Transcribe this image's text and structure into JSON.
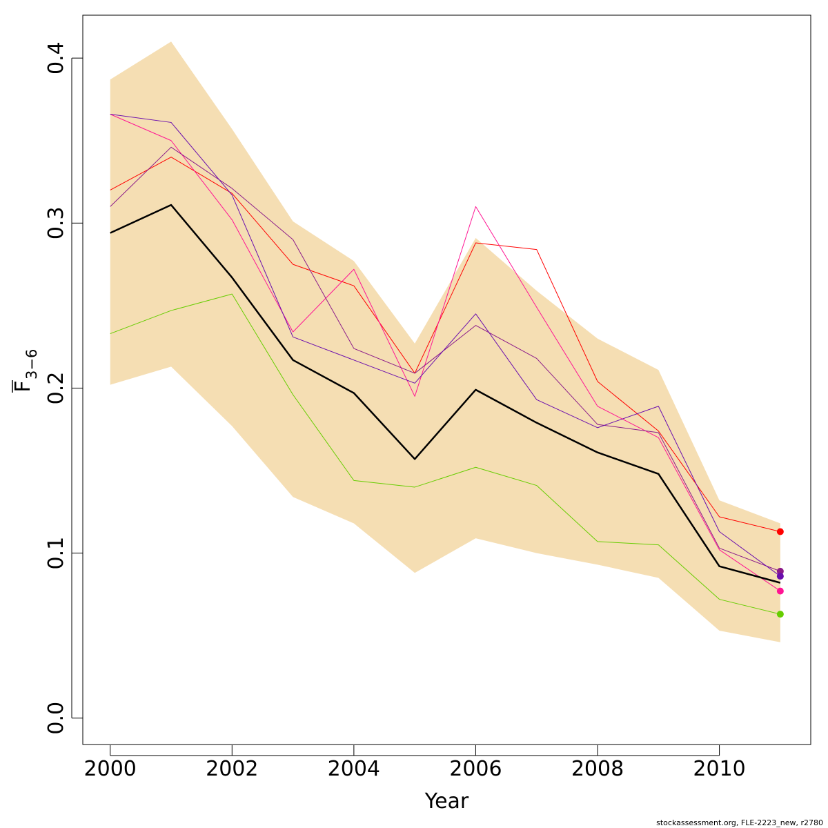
{
  "chart_data": {
    "type": "line",
    "title": "",
    "xlabel": "Year",
    "ylabel": "F",
    "ylabel_subscript": "3−6",
    "xlim": [
      1999.55,
      2011.5
    ],
    "ylim": [
      -0.016,
      0.426
    ],
    "x_ticks": [
      2000,
      2002,
      2004,
      2006,
      2008,
      2010
    ],
    "y_ticks": [
      0.0,
      0.1,
      0.2,
      0.3,
      0.4
    ],
    "x_tick_labels": [
      "2000",
      "2002",
      "2004",
      "2006",
      "2008",
      "2010"
    ],
    "y_tick_labels": [
      "0.0",
      "0.1",
      "0.2",
      "0.3",
      "0.4"
    ],
    "grid": false,
    "x": [
      2000,
      2001,
      2002,
      2003,
      2004,
      2005,
      2006,
      2007,
      2008,
      2009,
      2010,
      2011
    ],
    "band": {
      "color": "#f5deb3",
      "upper": [
        0.387,
        0.41,
        0.357,
        0.301,
        0.277,
        0.227,
        0.291,
        0.259,
        0.23,
        0.211,
        0.132,
        0.118
      ],
      "lower": [
        0.202,
        0.213,
        0.177,
        0.134,
        0.118,
        0.088,
        0.109,
        0.1,
        0.093,
        0.085,
        0.053,
        0.046
      ]
    },
    "series": [
      {
        "color": "#000000",
        "width": 2.5,
        "values": [
          0.294,
          0.311,
          0.267,
          0.217,
          0.197,
          0.157,
          0.199,
          0.179,
          0.161,
          0.148,
          0.092,
          0.082
        ]
      },
      {
        "color": "#ff0000",
        "width": 1,
        "values": [
          0.32,
          0.34,
          0.318,
          0.275,
          0.262,
          0.209,
          0.288,
          0.284,
          0.204,
          0.174,
          0.122,
          0.113
        ],
        "endpoint": true
      },
      {
        "color": "#ff1493",
        "width": 1,
        "values": [
          0.366,
          0.35,
          0.302,
          0.234,
          0.272,
          0.195,
          0.31,
          0.249,
          0.189,
          0.17,
          0.102,
          0.077
        ],
        "endpoint": true
      },
      {
        "color": "#8b1a89",
        "width": 1,
        "values": [
          0.31,
          0.346,
          0.321,
          0.29,
          0.224,
          0.209,
          0.238,
          0.218,
          0.178,
          0.173,
          0.103,
          0.089
        ],
        "endpoint": true
      },
      {
        "color": "#6a0dad",
        "width": 1,
        "values": [
          0.366,
          0.361,
          0.317,
          0.231,
          0.217,
          0.203,
          0.245,
          0.193,
          0.176,
          0.189,
          0.113,
          0.086
        ],
        "endpoint": true
      },
      {
        "color": "#66cd00",
        "width": 1,
        "values": [
          0.233,
          0.247,
          0.257,
          0.196,
          0.144,
          0.14,
          0.152,
          0.141,
          0.107,
          0.105,
          0.072,
          0.063
        ],
        "endpoint": true
      }
    ]
  },
  "footer": "stockassessment.org, FLE-2223_new, r2780"
}
